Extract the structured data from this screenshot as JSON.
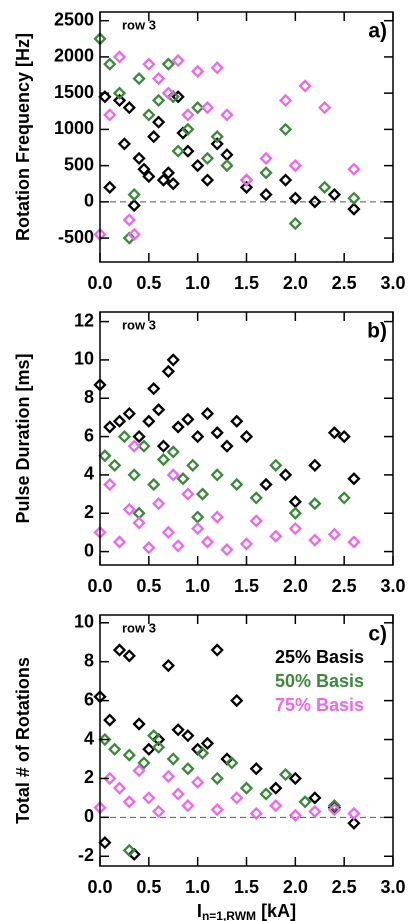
{
  "chart_data": [
    {
      "type": "scatter",
      "note": "row 3",
      "panel_label": "a)",
      "y_label": "Rotation Frequency [Hz]",
      "xlim": [
        0,
        3
      ],
      "xticks": [
        {
          "value": 0,
          "label": "0.0"
        },
        0.5,
        {
          "value": 1,
          "label": "1.0"
        },
        1.5,
        {
          "value": 2,
          "label": "2.0"
        },
        2.5,
        {
          "value": 3,
          "label": "3.0"
        }
      ],
      "ylim": [
        -830,
        2620
      ],
      "yticks": [
        -500,
        0,
        500,
        1000,
        1500,
        2000,
        2500
      ],
      "zero_line": true,
      "series": [
        {
          "color": "#000000",
          "x": [
            0.05,
            0.1,
            0.2,
            0.3,
            0.35,
            0.4,
            0.5,
            0.55,
            0.6,
            0.7,
            0.75,
            0.8,
            0.9,
            1.0,
            1.1,
            1.2,
            1.3,
            1.5,
            1.7,
            1.9,
            2.0,
            2.2,
            2.4,
            2.6,
            0.25,
            0.45,
            0.65,
            0.85
          ],
          "values": [
            1450,
            200,
            1400,
            1300,
            -50,
            600,
            350,
            900,
            1100,
            400,
            250,
            1450,
            700,
            500,
            300,
            800,
            650,
            200,
            100,
            300,
            50,
            0,
            100,
            -100,
            800,
            450,
            300,
            950
          ]
        },
        {
          "color": "#3a8a3a",
          "x": [
            0.0,
            0.1,
            0.2,
            0.3,
            0.4,
            0.5,
            0.6,
            0.7,
            0.8,
            0.9,
            1.0,
            1.1,
            1.2,
            1.3,
            1.5,
            1.7,
            1.9,
            2.0,
            2.3,
            2.6,
            0.35,
            0.75
          ],
          "values": [
            2250,
            1900,
            1500,
            -500,
            1700,
            1200,
            1400,
            1900,
            700,
            1000,
            1300,
            600,
            900,
            500,
            300,
            400,
            1000,
            -300,
            200,
            50,
            100,
            1450
          ]
        },
        {
          "color": "#ee66ee",
          "x": [
            0.0,
            0.1,
            0.2,
            0.35,
            0.5,
            0.6,
            0.7,
            0.8,
            0.9,
            1.0,
            1.1,
            1.3,
            1.5,
            1.7,
            1.9,
            2.0,
            2.1,
            2.3,
            2.6,
            0.3,
            1.2
          ],
          "values": [
            -450,
            1200,
            2000,
            -450,
            1900,
            1700,
            1500,
            1950,
            1200,
            1800,
            1300,
            1200,
            300,
            600,
            1400,
            500,
            1600,
            1300,
            450,
            -250,
            1850
          ]
        }
      ]
    },
    {
      "type": "scatter",
      "note": "row 3",
      "panel_label": "b)",
      "y_label": "Pulse Duration [ms]",
      "xlim": [
        0,
        3
      ],
      "xticks": [
        {
          "value": 0,
          "label": "0.0"
        },
        0.5,
        {
          "value": 1,
          "label": "1.0"
        },
        1.5,
        {
          "value": 2,
          "label": "2.0"
        },
        2.5,
        {
          "value": 3,
          "label": "3.0"
        }
      ],
      "ylim": [
        -0.7,
        12.5
      ],
      "yticks": [
        0,
        2,
        4,
        6,
        8,
        10,
        12
      ],
      "zero_line": false,
      "series": [
        {
          "color": "#000000",
          "x": [
            0.0,
            0.1,
            0.2,
            0.3,
            0.4,
            0.5,
            0.6,
            0.7,
            0.75,
            0.8,
            0.9,
            1.0,
            1.1,
            1.2,
            1.3,
            1.4,
            1.5,
            1.7,
            1.9,
            2.0,
            2.2,
            2.4,
            2.5,
            2.6,
            0.55,
            0.65
          ],
          "values": [
            8.7,
            6.5,
            6.8,
            7.2,
            6.0,
            6.8,
            7.4,
            9.4,
            10.0,
            6.5,
            6.9,
            6.0,
            7.2,
            6.2,
            5.5,
            6.8,
            6.0,
            3.5,
            4.0,
            2.6,
            4.5,
            6.2,
            6.0,
            3.8,
            8.5,
            5.5
          ]
        },
        {
          "color": "#3a8a3a",
          "x": [
            0.05,
            0.15,
            0.25,
            0.35,
            0.45,
            0.55,
            0.65,
            0.75,
            0.85,
            0.95,
            1.05,
            1.2,
            1.4,
            1.6,
            1.8,
            2.0,
            2.2,
            2.5,
            0.4,
            1.0
          ],
          "values": [
            5.0,
            4.5,
            6.0,
            4.0,
            5.5,
            3.5,
            4.8,
            5.2,
            3.8,
            4.5,
            3.0,
            4.0,
            3.5,
            2.8,
            4.5,
            2.0,
            2.5,
            2.8,
            2.0,
            1.8
          ]
        },
        {
          "color": "#ee66ee",
          "x": [
            0.0,
            0.1,
            0.2,
            0.3,
            0.4,
            0.5,
            0.6,
            0.7,
            0.8,
            0.9,
            1.0,
            1.1,
            1.2,
            1.3,
            1.5,
            1.6,
            1.8,
            2.0,
            2.2,
            2.4,
            2.6,
            0.35,
            0.75
          ],
          "values": [
            1.0,
            3.5,
            0.5,
            2.2,
            1.5,
            0.2,
            2.5,
            1.0,
            0.3,
            3.0,
            1.2,
            0.5,
            1.8,
            0.1,
            0.4,
            1.6,
            0.8,
            1.2,
            0.6,
            0.9,
            0.5,
            5.5,
            4.0
          ]
        }
      ]
    },
    {
      "type": "scatter",
      "note": "row 3",
      "panel_label": "c)",
      "y_label": "Total # of Rotations",
      "x_label": {
        "main": "I",
        "sub": "n=1,RWM",
        "unit": " [kA]"
      },
      "xlim": [
        0,
        3
      ],
      "xticks": [
        {
          "value": 0,
          "label": "0.0"
        },
        0.5,
        {
          "value": 1,
          "label": "1.0"
        },
        1.5,
        {
          "value": 2,
          "label": "2.0"
        },
        2.5,
        {
          "value": 3,
          "label": "3.0"
        }
      ],
      "ylim": [
        -2.5,
        10.4
      ],
      "yticks": [
        -2,
        0,
        2,
        4,
        6,
        8,
        10
      ],
      "zero_line": true,
      "legend": "upper right",
      "series": [
        {
          "name": "25% Basis",
          "color": "#000000",
          "x": [
            0.0,
            0.1,
            0.2,
            0.3,
            0.4,
            0.5,
            0.6,
            0.7,
            0.8,
            0.9,
            1.0,
            1.1,
            1.2,
            1.3,
            1.4,
            1.6,
            1.8,
            2.0,
            2.2,
            2.4,
            2.6,
            0.05,
            0.35
          ],
          "values": [
            6.2,
            5.0,
            8.6,
            8.3,
            4.8,
            3.5,
            4.0,
            7.8,
            4.5,
            4.2,
            3.5,
            3.8,
            8.6,
            3.0,
            6.0,
            2.5,
            1.5,
            2.0,
            1.0,
            0.5,
            -0.3,
            -1.3,
            -1.9
          ]
        },
        {
          "name": "50% Basis",
          "color": "#3a8a3a",
          "x": [
            0.05,
            0.15,
            0.3,
            0.45,
            0.6,
            0.75,
            0.9,
            1.05,
            1.2,
            1.35,
            1.5,
            1.7,
            1.9,
            2.1,
            2.4,
            0.3,
            0.55
          ],
          "values": [
            4.0,
            3.5,
            3.2,
            2.8,
            3.6,
            3.0,
            2.5,
            3.3,
            2.0,
            2.8,
            1.5,
            1.2,
            2.2,
            0.8,
            0.6,
            -1.7,
            4.2
          ]
        },
        {
          "name": "75% Basis",
          "color": "#ee66ee",
          "x": [
            0.0,
            0.1,
            0.2,
            0.3,
            0.4,
            0.5,
            0.6,
            0.7,
            0.8,
            0.9,
            1.0,
            1.2,
            1.4,
            1.6,
            1.8,
            2.0,
            2.2,
            2.4,
            2.6
          ],
          "values": [
            0.5,
            2.0,
            1.5,
            0.8,
            2.4,
            1.0,
            0.3,
            2.1,
            1.2,
            0.6,
            1.8,
            0.4,
            1.0,
            0.2,
            0.6,
            0.1,
            0.3,
            0.4,
            0.2
          ]
        }
      ]
    }
  ]
}
